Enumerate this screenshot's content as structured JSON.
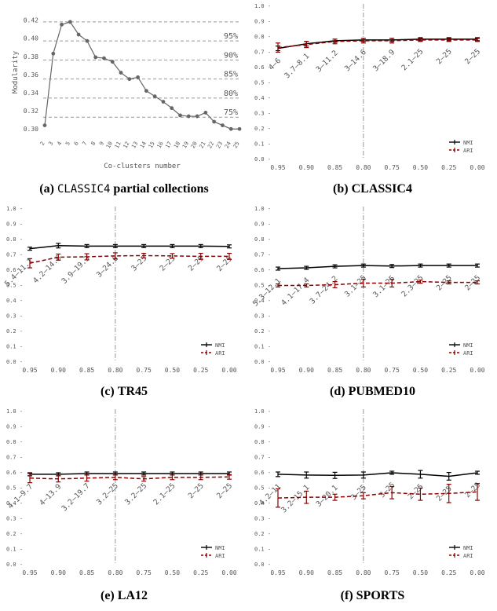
{
  "captions": [
    {
      "label": "(a)",
      "mono": "CLASSIC4",
      "text": "partial collections"
    },
    {
      "label": "(b)",
      "mono": "",
      "text": "CLASSIC4"
    },
    {
      "label": "(c)",
      "mono": "",
      "text": "TR45"
    },
    {
      "label": "(d)",
      "mono": "",
      "text": "PUBMED10"
    },
    {
      "label": "(e)",
      "mono": "",
      "text": "LA12"
    },
    {
      "label": "(f)",
      "mono": "",
      "text": "SPORTS"
    }
  ],
  "chart_data": [
    {
      "type": "line",
      "xlabel": "Co-clusters number",
      "ylabel": "Modularity",
      "x": [
        2,
        3,
        4,
        5,
        6,
        7,
        8,
        9,
        10,
        11,
        12,
        13,
        14,
        15,
        16,
        17,
        18,
        19,
        20,
        21,
        22,
        23,
        24,
        25
      ],
      "values": [
        0.304,
        0.383,
        0.415,
        0.418,
        0.404,
        0.397,
        0.379,
        0.378,
        0.374,
        0.362,
        0.355,
        0.357,
        0.342,
        0.336,
        0.33,
        0.323,
        0.315,
        0.314,
        0.314,
        0.318,
        0.308,
        0.304,
        0.3,
        0.3
      ],
      "ylim": [
        0.295,
        0.43
      ],
      "yticks": [
        "0.30",
        "0.32",
        "0.34",
        "0.36",
        "0.38",
        "0.40",
        "0.42"
      ],
      "xticks": [
        "2",
        "3",
        "4",
        "5",
        "6",
        "7",
        "8",
        "9",
        "10",
        "11",
        "12",
        "13",
        "14",
        "15",
        "16",
        "17",
        "18",
        "19",
        "20",
        "21",
        "22",
        "23",
        "24",
        "25"
      ],
      "ref_lines": [
        {
          "y": 0.418,
          "label": ""
        },
        {
          "y": 0.397,
          "label": "95%"
        },
        {
          "y": 0.376,
          "label": "90%"
        },
        {
          "y": 0.355,
          "label": "85%"
        },
        {
          "y": 0.334,
          "label": "80%"
        },
        {
          "y": 0.313,
          "label": "75%"
        }
      ],
      "grid": false,
      "color": "#666666"
    },
    {
      "type": "line",
      "categories": [
        "0.95",
        "0.90",
        "0.85",
        "0.80",
        "0.75",
        "0.50",
        "0.25",
        "0.00"
      ],
      "yticks": [
        "0.0",
        "0.1",
        "0.2",
        "0.3",
        "0.4",
        "0.5",
        "0.6",
        "0.7",
        "0.8",
        "0.9",
        "1.0"
      ],
      "ylim": [
        0,
        1
      ],
      "annotations": [
        "4–6",
        "3.7–8.1",
        "3–11.2",
        "3–14.6",
        "3–18.9",
        "2.1–25",
        "2–25",
        "2–25"
      ],
      "vline_category": "0.80",
      "legend_position": "bottom-right",
      "series": [
        {
          "name": "NMI",
          "values": [
            0.72,
            0.75,
            0.77,
            0.775,
            0.775,
            0.78,
            0.78,
            0.78
          ],
          "errors": [
            0.015,
            0.015,
            0.01,
            0.01,
            0.01,
            0.01,
            0.01,
            0.01
          ],
          "color": "#000000",
          "dashed": false
        },
        {
          "name": "ARI",
          "values": [
            0.725,
            0.745,
            0.765,
            0.77,
            0.77,
            0.775,
            0.775,
            0.775
          ],
          "errors": [
            0.03,
            0.02,
            0.015,
            0.015,
            0.015,
            0.01,
            0.01,
            0.01
          ],
          "color": "#8b0000",
          "dashed": true
        }
      ]
    },
    {
      "type": "line",
      "categories": [
        "0.95",
        "0.90",
        "0.85",
        "0.80",
        "0.75",
        "0.50",
        "0.25",
        "0.00"
      ],
      "yticks": [
        "0.0",
        "0.1",
        "0.2",
        "0.3",
        "0.4",
        "0.5",
        "0.6",
        "0.7",
        "0.8",
        "0.9",
        "1.0"
      ],
      "ylim": [
        0,
        1
      ],
      "annotations": [
        "5.4–11.1",
        "4.2–14.6",
        "3.9–19.3",
        "3–24.6",
        "3–25",
        "2–25",
        "2–25",
        "2–25"
      ],
      "vline_category": "0.80",
      "legend_position": "bottom-right",
      "series": [
        {
          "name": "NMI",
          "values": [
            0.735,
            0.755,
            0.752,
            0.752,
            0.752,
            0.752,
            0.752,
            0.75
          ],
          "errors": [
            0.01,
            0.015,
            0.01,
            0.01,
            0.01,
            0.01,
            0.01,
            0.01
          ],
          "color": "#000000",
          "dashed": false
        },
        {
          "name": "ARI",
          "values": [
            0.64,
            0.68,
            0.682,
            0.688,
            0.69,
            0.688,
            0.685,
            0.685
          ],
          "errors": [
            0.03,
            0.02,
            0.02,
            0.02,
            0.015,
            0.015,
            0.02,
            0.02
          ],
          "color": "#8b0000",
          "dashed": true
        }
      ]
    },
    {
      "type": "line",
      "categories": [
        "0.95",
        "0.90",
        "0.85",
        "0.80",
        "0.75",
        "0.50",
        "0.25",
        "0.00"
      ],
      "yticks": [
        "0.0",
        "0.1",
        "0.2",
        "0.3",
        "0.4",
        "0.5",
        "0.6",
        "0.7",
        "0.8",
        "0.9",
        "1.0"
      ],
      "ylim": [
        0,
        1
      ],
      "annotations": [
        "5.3–12.1",
        "4.1–17.4",
        "3.7–24.2",
        "3.1–25",
        "3.1–25",
        "2.3–25",
        "2–25",
        "2–25"
      ],
      "vline_category": "0.80",
      "legend_position": "bottom-right",
      "series": [
        {
          "name": "NMI",
          "values": [
            0.605,
            0.61,
            0.62,
            0.625,
            0.622,
            0.625,
            0.625,
            0.625
          ],
          "errors": [
            0.01,
            0.01,
            0.01,
            0.01,
            0.01,
            0.01,
            0.01,
            0.01
          ],
          "color": "#000000",
          "dashed": false
        },
        {
          "name": "ARI",
          "values": [
            0.495,
            0.495,
            0.5,
            0.51,
            0.51,
            0.52,
            0.515,
            0.515
          ],
          "errors": [
            0.01,
            0.01,
            0.02,
            0.025,
            0.025,
            0.01,
            0.01,
            0.01
          ],
          "color": "#8b0000",
          "dashed": true
        }
      ]
    },
    {
      "type": "line",
      "categories": [
        "0.95",
        "0.90",
        "0.85",
        "0.80",
        "0.75",
        "0.50",
        "0.25",
        "0.00"
      ],
      "yticks": [
        "0.0",
        "0.1",
        "0.2",
        "0.3",
        "0.4",
        "0.5",
        "0.6",
        "0.7",
        "0.8",
        "0.9",
        "1.0"
      ],
      "ylim": [
        0,
        1
      ],
      "annotations": [
        "4.1–9.7",
        "4–13.9",
        "3.2–19.7",
        "3.2–25",
        "3.2–25",
        "2.1–25",
        "2–25",
        "2–25"
      ],
      "vline_category": "0.80",
      "legend_position": "bottom-right",
      "series": [
        {
          "name": "NMI",
          "values": [
            0.585,
            0.585,
            0.59,
            0.59,
            0.59,
            0.59,
            0.59,
            0.59
          ],
          "errors": [
            0.01,
            0.01,
            0.01,
            0.01,
            0.01,
            0.01,
            0.01,
            0.01
          ],
          "color": "#000000",
          "dashed": false
        },
        {
          "name": "ARI",
          "values": [
            0.56,
            0.555,
            0.56,
            0.565,
            0.555,
            0.565,
            0.565,
            0.568
          ],
          "errors": [
            0.03,
            0.02,
            0.02,
            0.015,
            0.015,
            0.015,
            0.015,
            0.015
          ],
          "color": "#8b0000",
          "dashed": true
        }
      ]
    },
    {
      "type": "line",
      "categories": [
        "0.95",
        "0.90",
        "0.85",
        "0.80",
        "0.75",
        "0.50",
        "0.25",
        "0.00"
      ],
      "yticks": [
        "0.0",
        "0.1",
        "0.2",
        "0.3",
        "0.4",
        "0.5",
        "0.6",
        "0.7",
        "0.8",
        "0.9",
        "1.0"
      ],
      "ylim": [
        0,
        1
      ],
      "annotations": [
        "4.2–11",
        "3.2–15.1",
        "3–20.1",
        "3–25",
        "3–25",
        "2–25",
        "2–25",
        "2–25"
      ],
      "vline_category": "0.80",
      "legend_position": "bottom-right",
      "series": [
        {
          "name": "NMI",
          "values": [
            0.585,
            0.58,
            0.578,
            0.58,
            0.595,
            0.585,
            0.572,
            0.595
          ],
          "errors": [
            0.015,
            0.02,
            0.02,
            0.02,
            0.01,
            0.025,
            0.025,
            0.01
          ],
          "color": "#000000",
          "dashed": false
        },
        {
          "name": "ARI",
          "values": [
            0.43,
            0.435,
            0.435,
            0.445,
            0.465,
            0.455,
            0.46,
            0.47
          ],
          "errors": [
            0.06,
            0.04,
            0.02,
            0.02,
            0.04,
            0.04,
            0.06,
            0.055
          ],
          "color": "#8b0000",
          "dashed": true
        }
      ]
    }
  ]
}
